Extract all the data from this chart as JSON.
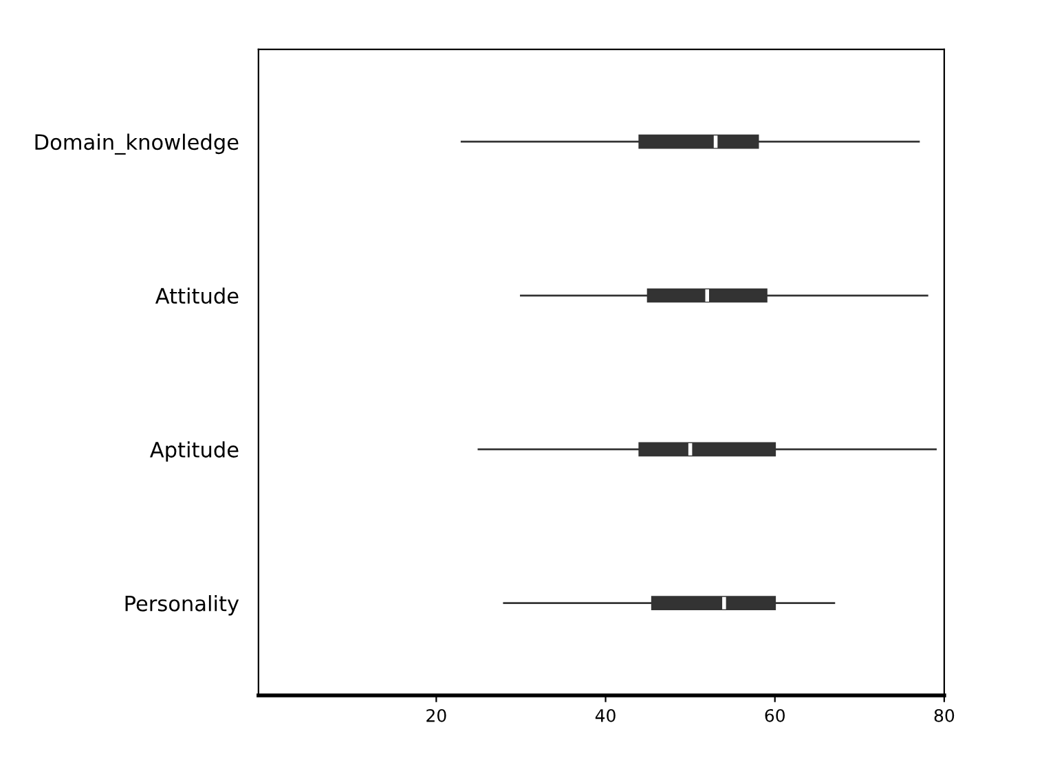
{
  "chart_data": {
    "type": "box",
    "orientation": "horizontal",
    "categories": [
      "Domain_knowledge",
      "Attitude",
      "Aptitude",
      "Personality"
    ],
    "boxes": [
      {
        "low": 23,
        "q1": 44,
        "median": 53,
        "q3": 58,
        "high": 77
      },
      {
        "low": 30,
        "q1": 45,
        "median": 52,
        "q3": 59,
        "high": 78
      },
      {
        "low": 25,
        "q1": 44,
        "median": 50,
        "q3": 60,
        "high": 79
      },
      {
        "low": 28,
        "q1": 45.5,
        "median": 54,
        "q3": 60,
        "high": 67
      }
    ],
    "color": "#333333",
    "xlim": [
      -1,
      80
    ],
    "xticks": [
      20,
      40,
      60,
      80
    ],
    "grid": false
  }
}
